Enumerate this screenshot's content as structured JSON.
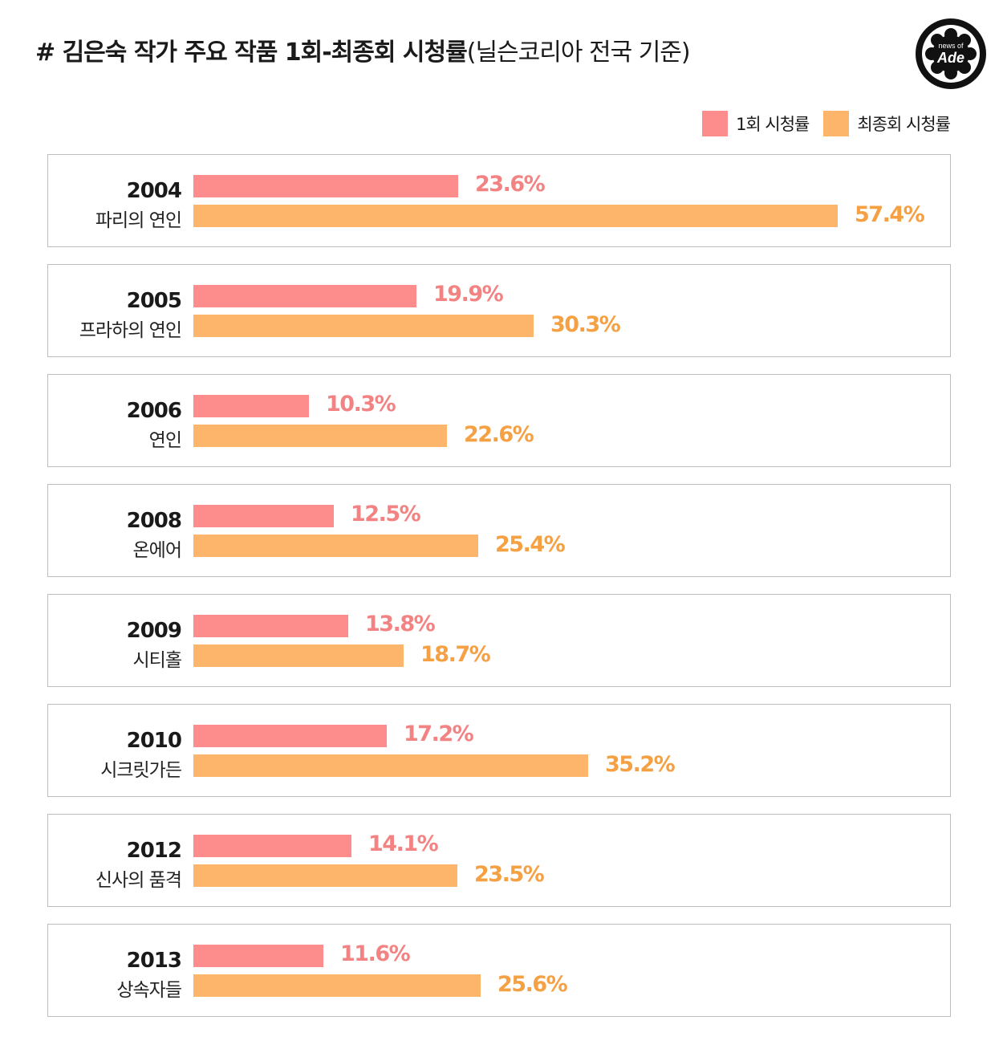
{
  "title": {
    "main": "# 김은숙 작가 주요 작품 1회-최종회 시청률",
    "sub": "(닐슨코리아 전국 기준)"
  },
  "logo": {
    "line1": "news of",
    "line2": "Ade"
  },
  "colors": {
    "first": "#fd8c8c",
    "final": "#fdb56b",
    "first_text": "#f38383",
    "final_text": "#f5a043"
  },
  "chart_data": {
    "type": "bar",
    "orientation": "horizontal",
    "title": "# 김은숙 작가 주요 작품 1회-최종회 시청률(닐슨코리아 전국 기준)",
    "unit": "%",
    "xlim": [
      0,
      57.4
    ],
    "legend": {
      "position": "top-right",
      "entries": [
        "1회 시청률",
        "최종회 시청률"
      ]
    },
    "categories": [
      {
        "year": "2004",
        "name": "파리의 연인"
      },
      {
        "year": "2005",
        "name": "프라하의 연인"
      },
      {
        "year": "2006",
        "name": "연인"
      },
      {
        "year": "2008",
        "name": "온에어"
      },
      {
        "year": "2009",
        "name": "시티홀"
      },
      {
        "year": "2010",
        "name": "시크릿가든"
      },
      {
        "year": "2012",
        "name": "신사의 품격"
      },
      {
        "year": "2013",
        "name": "상속자들"
      }
    ],
    "series": [
      {
        "name": "1회 시청률",
        "values": [
          23.6,
          19.9,
          10.3,
          12.5,
          13.8,
          17.2,
          14.1,
          11.6
        ]
      },
      {
        "name": "최종회 시청률",
        "values": [
          57.4,
          30.3,
          22.6,
          25.4,
          18.7,
          35.2,
          23.5,
          25.6
        ]
      }
    ]
  }
}
